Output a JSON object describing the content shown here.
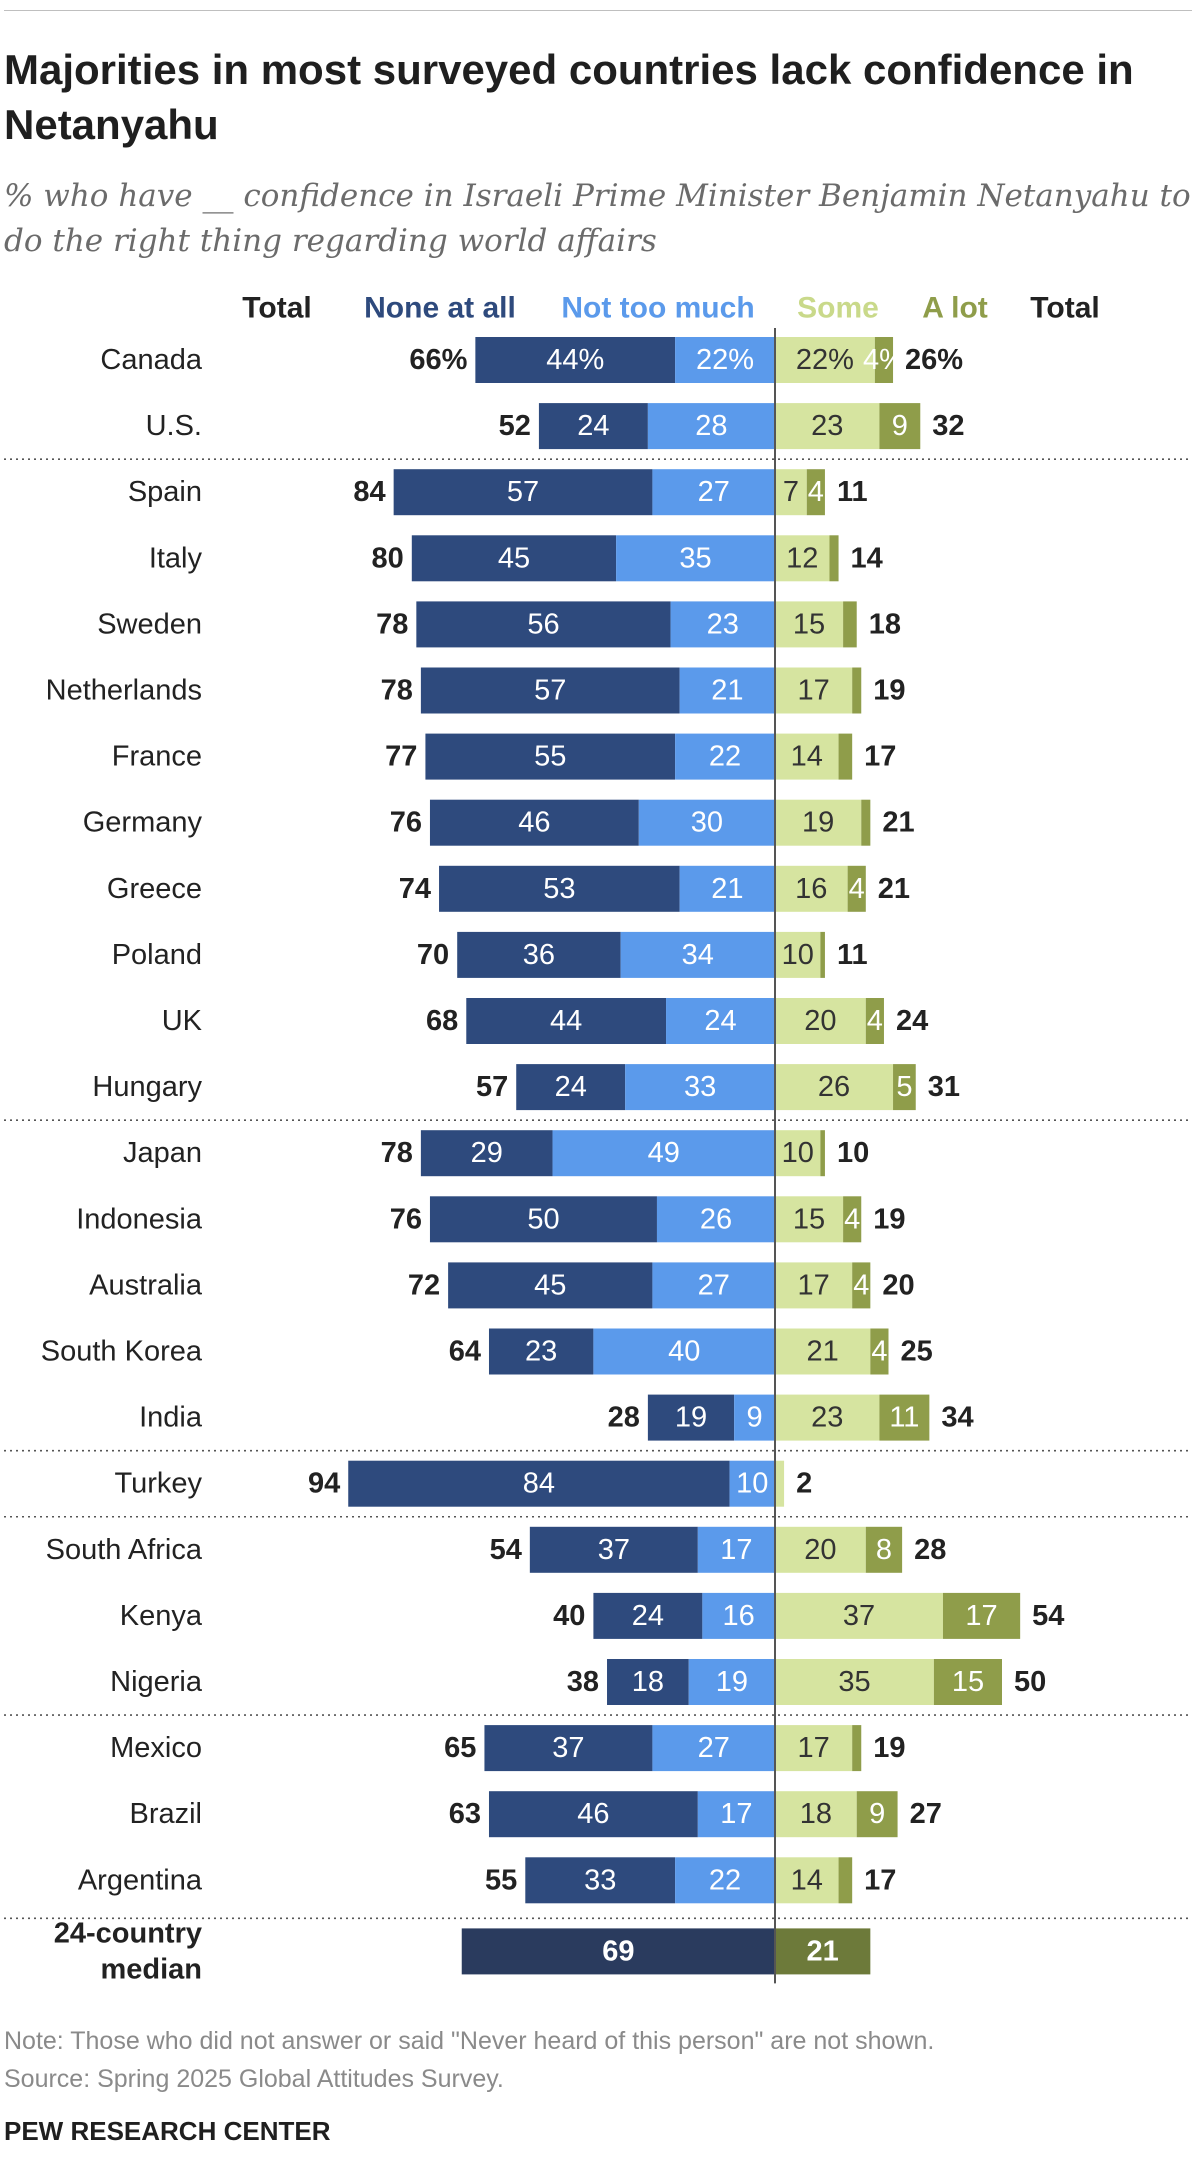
{
  "title": "Majorities in most surveyed countries lack confidence in Netanyahu",
  "subtitle": "% who have __ confidence in Israeli Prime Minister Benjamin Netanyahu to do the right thing regarding world affairs",
  "chart_data": {
    "type": "bar",
    "orientation": "horizontal-diverging",
    "header": {
      "total_left": "Total",
      "none_at_all": "None at all",
      "not_too_much": "Not too much",
      "some": "Some",
      "a_lot": "A lot",
      "total_right": "Total"
    },
    "colors": {
      "none_at_all": "#2e4a7d",
      "not_too_much": "#5b9aeb",
      "some": "#d6e4a0",
      "a_lot": "#8f9d4a",
      "median_neg": "#2a3b5e",
      "median_pos": "#6d7a3a",
      "axis": "#555555"
    },
    "rows": [
      {
        "country": "Canada",
        "none": 44,
        "not_much": 22,
        "some": 22,
        "a_lot": 4,
        "neg_total": 66,
        "pos_total": 26,
        "pct": true
      },
      {
        "country": "U.S.",
        "none": 24,
        "not_much": 28,
        "some": 23,
        "a_lot": 9,
        "neg_total": 52,
        "pos_total": 32
      },
      {
        "country": "Spain",
        "none": 57,
        "not_much": 27,
        "some": 7,
        "a_lot": 4,
        "neg_total": 84,
        "pos_total": 11,
        "sep_before": true
      },
      {
        "country": "Italy",
        "none": 45,
        "not_much": 35,
        "some": 12,
        "a_lot": 2,
        "neg_total": 80,
        "pos_total": 14,
        "hide_a_lot": true
      },
      {
        "country": "Sweden",
        "none": 56,
        "not_much": 23,
        "some": 15,
        "a_lot": 3,
        "neg_total": 78,
        "pos_total": 18,
        "hide_a_lot": true
      },
      {
        "country": "Netherlands",
        "none": 57,
        "not_much": 21,
        "some": 17,
        "a_lot": 2,
        "neg_total": 78,
        "pos_total": 19,
        "hide_a_lot": true
      },
      {
        "country": "France",
        "none": 55,
        "not_much": 22,
        "some": 14,
        "a_lot": 3,
        "neg_total": 77,
        "pos_total": 17,
        "hide_a_lot": true
      },
      {
        "country": "Germany",
        "none": 46,
        "not_much": 30,
        "some": 19,
        "a_lot": 2,
        "neg_total": 76,
        "pos_total": 21,
        "hide_a_lot": true
      },
      {
        "country": "Greece",
        "none": 53,
        "not_much": 21,
        "some": 16,
        "a_lot": 4,
        "neg_total": 74,
        "pos_total": 21
      },
      {
        "country": "Poland",
        "none": 36,
        "not_much": 34,
        "some": 10,
        "a_lot": 1,
        "neg_total": 70,
        "pos_total": 11,
        "hide_a_lot": true
      },
      {
        "country": "UK",
        "none": 44,
        "not_much": 24,
        "some": 20,
        "a_lot": 4,
        "neg_total": 68,
        "pos_total": 24
      },
      {
        "country": "Hungary",
        "none": 24,
        "not_much": 33,
        "some": 26,
        "a_lot": 5,
        "neg_total": 57,
        "pos_total": 31
      },
      {
        "country": "Japan",
        "none": 29,
        "not_much": 49,
        "some": 10,
        "a_lot": 1,
        "neg_total": 78,
        "pos_total": 10,
        "hide_a_lot": true,
        "sep_before": true
      },
      {
        "country": "Indonesia",
        "none": 50,
        "not_much": 26,
        "some": 15,
        "a_lot": 4,
        "neg_total": 76,
        "pos_total": 19
      },
      {
        "country": "Australia",
        "none": 45,
        "not_much": 27,
        "some": 17,
        "a_lot": 4,
        "neg_total": 72,
        "pos_total": 20
      },
      {
        "country": "South Korea",
        "none": 23,
        "not_much": 40,
        "some": 21,
        "a_lot": 4,
        "neg_total": 64,
        "pos_total": 25
      },
      {
        "country": "India",
        "none": 19,
        "not_much": 9,
        "some": 23,
        "a_lot": 11,
        "neg_total": 28,
        "pos_total": 34
      },
      {
        "country": "Turkey",
        "none": 84,
        "not_much": 10,
        "some": 2,
        "a_lot": 0,
        "neg_total": 94,
        "pos_total": 2,
        "hide_some": true,
        "hide_a_lot": true,
        "sep_before": true
      },
      {
        "country": "South Africa",
        "none": 37,
        "not_much": 17,
        "some": 20,
        "a_lot": 8,
        "neg_total": 54,
        "pos_total": 28,
        "sep_before": true
      },
      {
        "country": "Kenya",
        "none": 24,
        "not_much": 16,
        "some": 37,
        "a_lot": 17,
        "neg_total": 40,
        "pos_total": 54
      },
      {
        "country": "Nigeria",
        "none": 18,
        "not_much": 19,
        "some": 35,
        "a_lot": 15,
        "neg_total": 38,
        "pos_total": 50
      },
      {
        "country": "Mexico",
        "none": 37,
        "not_much": 27,
        "some": 17,
        "a_lot": 2,
        "neg_total": 65,
        "pos_total": 19,
        "hide_a_lot": true,
        "sep_before": true
      },
      {
        "country": "Brazil",
        "none": 46,
        "not_much": 17,
        "some": 18,
        "a_lot": 9,
        "neg_total": 63,
        "pos_total": 27
      },
      {
        "country": "Argentina",
        "none": 33,
        "not_much": 22,
        "some": 14,
        "a_lot": 3,
        "neg_total": 55,
        "pos_total": 17,
        "hide_a_lot": true
      }
    ],
    "median": {
      "label_line1": "24-country",
      "label_line2": "median",
      "neg": 69,
      "pos": 21
    }
  },
  "note": "Note: Those who did not answer or said \"Never heard of this person\" are not shown.",
  "source": "Source: Spring 2025 Global Attitudes Survey.",
  "brand": "PEW RESEARCH CENTER"
}
